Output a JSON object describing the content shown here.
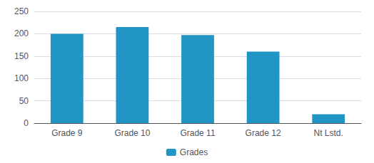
{
  "chart_data": {
    "type": "bar",
    "categories": [
      "Grade 9",
      "Grade 10",
      "Grade 11",
      "Grade 12",
      "Nt Lstd."
    ],
    "series": [
      {
        "name": "Grades",
        "color": "#2196c4",
        "values": [
          200,
          215,
          197,
          160,
          20
        ]
      }
    ],
    "ylim": [
      0,
      250
    ],
    "yticks": [
      0,
      50,
      100,
      150,
      200,
      250
    ],
    "grid": true,
    "legend": "bottom"
  }
}
